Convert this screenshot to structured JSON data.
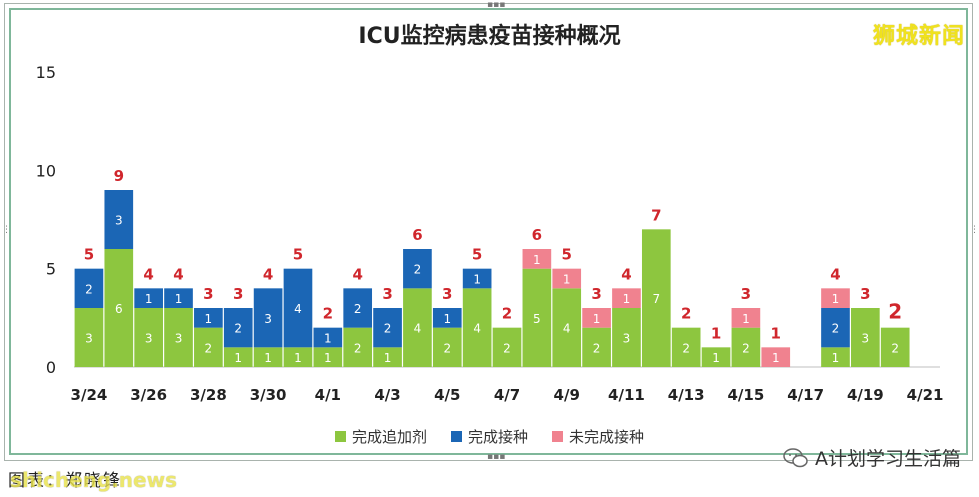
{
  "chart_data": {
    "type": "bar",
    "stacked": true,
    "title": "ICU监控病患疫苗接种概况",
    "ylim": [
      0,
      15
    ],
    "yticks": [
      0,
      5,
      10,
      15
    ],
    "categories": [
      "3/24",
      "3/25",
      "3/26",
      "3/27",
      "3/28",
      "3/29",
      "3/30",
      "3/31",
      "4/1",
      "4/2",
      "4/3",
      "4/4",
      "4/5",
      "4/6",
      "4/7",
      "4/8",
      "4/9",
      "4/10",
      "4/11",
      "4/12",
      "4/13",
      "4/14",
      "4/15",
      "4/16",
      "4/17",
      "4/18",
      "4/19",
      "4/20",
      "4/21"
    ],
    "xtick_labels": [
      "3/24",
      "3/26",
      "3/28",
      "3/30",
      "4/1",
      "4/3",
      "4/5",
      "4/7",
      "4/9",
      "4/11",
      "4/13",
      "4/15",
      "4/17",
      "4/19",
      "4/21"
    ],
    "series": [
      {
        "name": "完成追加剂",
        "color": "#8dc63f",
        "values": [
          3,
          6,
          3,
          3,
          2,
          1,
          1,
          1,
          1,
          2,
          1,
          4,
          2,
          4,
          2,
          5,
          4,
          2,
          3,
          7,
          2,
          1,
          2,
          0,
          0,
          1,
          3,
          2,
          0
        ]
      },
      {
        "name": "完成接种",
        "color": "#1b66b5",
        "values": [
          2,
          3,
          1,
          1,
          1,
          2,
          3,
          4,
          1,
          2,
          2,
          2,
          1,
          1,
          0,
          0,
          0,
          0,
          0,
          0,
          0,
          0,
          0,
          0,
          0,
          2,
          0,
          0,
          0
        ]
      },
      {
        "name": "未完成接种",
        "color": "#f0828f",
        "values": [
          0,
          0,
          0,
          0,
          0,
          0,
          0,
          0,
          0,
          0,
          0,
          0,
          0,
          0,
          0,
          1,
          1,
          1,
          1,
          0,
          0,
          0,
          1,
          1,
          0,
          1,
          0,
          0,
          0
        ]
      }
    ],
    "totals": [
      5,
      9,
      4,
      4,
      3,
      3,
      4,
      5,
      2,
      4,
      3,
      6,
      3,
      5,
      2,
      6,
      5,
      3,
      4,
      7,
      2,
      1,
      3,
      1,
      0,
      4,
      3,
      2,
      0
    ],
    "total_color": "#d0262c",
    "legend_position": "bottom"
  },
  "logo_text": "狮城新闻",
  "footer": {
    "source_text": "图表：郑晓锋",
    "watermark": "shicheng.news",
    "account": "A计划学习生活篇"
  }
}
